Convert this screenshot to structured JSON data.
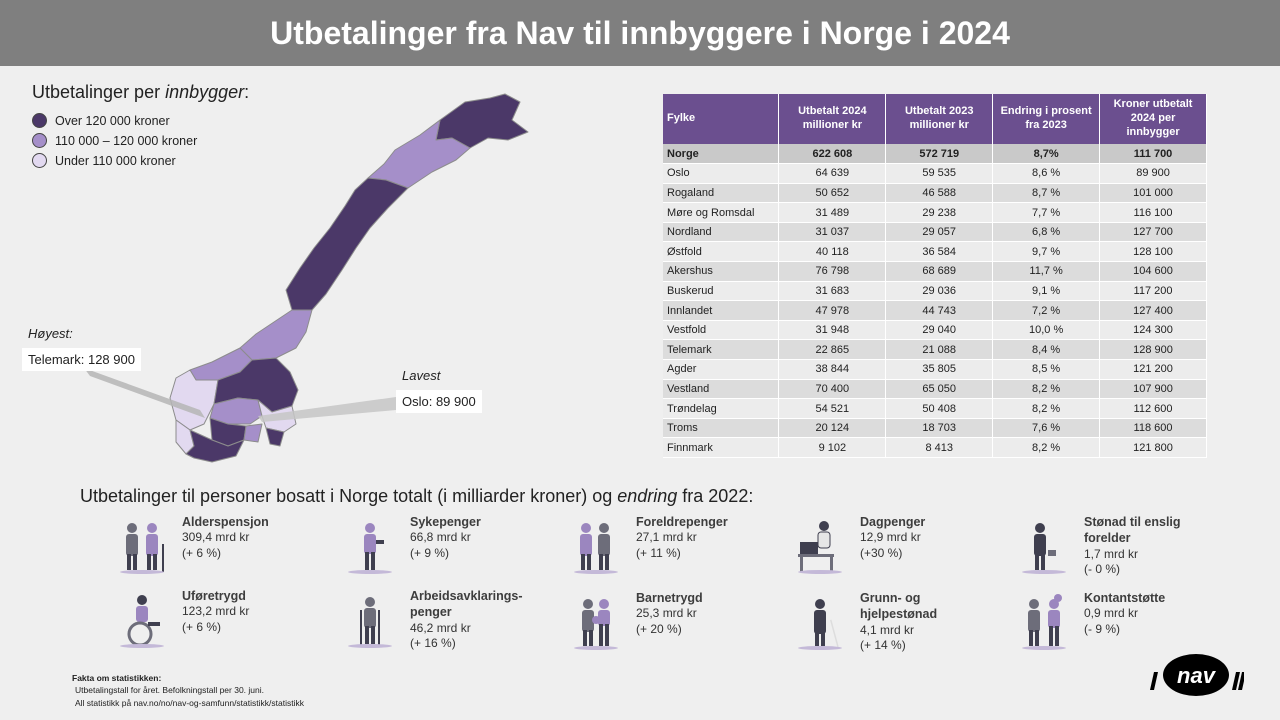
{
  "title": "Utbetalinger fra Nav til innbyggere i Norge i 2024",
  "legend": {
    "title_prefix": "Utbetalinger per ",
    "title_emph": "innbygger",
    "title_suffix": ":",
    "items": [
      {
        "label": "Over 120 000 kroner",
        "color": "#4b3868"
      },
      {
        "label": "110 000 – 120 000 kroner",
        "color": "#a58fc9"
      },
      {
        "label": "Under 110 000 kroner",
        "color": "#e2d9f0"
      }
    ]
  },
  "callouts": {
    "highest_label": "Høyest:",
    "highest_value": "Telemark: 128 900",
    "lowest_label": "Lavest",
    "lowest_value": "Oslo: 89 900"
  },
  "table": {
    "headers": [
      "Fylke",
      "Utbetalt 2024 millioner kr",
      "Utbetalt 2023 millioner kr",
      "Endring i prosent fra 2023",
      "Kroner utbetalt 2024 per innbygger"
    ],
    "total": [
      "Norge",
      "622 608",
      "572 719",
      "8,7%",
      "111 700"
    ],
    "rows": [
      [
        "Oslo",
        "64 639",
        "59 535",
        "8,6 %",
        "89 900"
      ],
      [
        "Rogaland",
        "50 652",
        "46 588",
        "8,7 %",
        "101 000"
      ],
      [
        "Møre og Romsdal",
        "31 489",
        "29 238",
        "7,7 %",
        "116 100"
      ],
      [
        "Nordland",
        "31 037",
        "29 057",
        "6,8 %",
        "127 700"
      ],
      [
        "Østfold",
        "40 118",
        "36 584",
        "9,7 %",
        "128 100"
      ],
      [
        "Akershus",
        "76 798",
        "68 689",
        "11,7 %",
        "104 600"
      ],
      [
        "Buskerud",
        "31 683",
        "29 036",
        "9,1 %",
        "117 200"
      ],
      [
        "Innlandet",
        "47 978",
        "44 743",
        "7,2 %",
        "127 400"
      ],
      [
        "Vestfold",
        "31 948",
        "29 040",
        "10,0 %",
        "124 300"
      ],
      [
        "Telemark",
        "22 865",
        "21 088",
        "8,4 %",
        "128 900"
      ],
      [
        "Agder",
        "38 844",
        "35 805",
        "8,5 %",
        "121 200"
      ],
      [
        "Vestland",
        "70 400",
        "65 050",
        "8,2 %",
        "107 900"
      ],
      [
        "Trøndelag",
        "54 521",
        "50 408",
        "8,2 %",
        "112 600"
      ],
      [
        "Troms",
        "20 124",
        "18 703",
        "7,6 %",
        "118 600"
      ],
      [
        "Finnmark",
        "9 102",
        "8 413",
        "8,2 %",
        "121 800"
      ]
    ]
  },
  "section": {
    "title_prefix": "Utbetalinger til personer bosatt i Norge totalt (i milliarder kroner) og ",
    "title_emph": "endring",
    "title_suffix": " fra 2022:"
  },
  "benefits": [
    {
      "name": "Alderspensjon",
      "amount": "309,4 mrd kr",
      "change": "(+ 6 %)",
      "icon": "elderly-couple-icon"
    },
    {
      "name": "Uføretrygd",
      "amount": "123,2 mrd kr",
      "change": "(+ 6 %)",
      "icon": "wheelchair-user-icon"
    },
    {
      "name": "Sykepenger",
      "amount": "66,8 mrd kr",
      "change": "(+ 9 %)",
      "icon": "sick-person-icon"
    },
    {
      "name": "Arbeidsavklarings-\npenger",
      "amount": "46,2 mrd kr",
      "change": "(+ 16 %)",
      "icon": "crutches-person-icon"
    },
    {
      "name": "Foreldrepenger",
      "amount": "27,1 mrd kr",
      "change": "(+ 11 %)",
      "icon": "parents-icon"
    },
    {
      "name": "Barnetrygd",
      "amount": "25,3 mrd kr",
      "change": "(+ 20 %)",
      "icon": "family-children-icon"
    },
    {
      "name": "Dagpenger",
      "amount": "12,9 mrd kr",
      "change": "(+30 %)",
      "icon": "desk-worker-icon"
    },
    {
      "name": "Grunn- og\nhjelpestønad",
      "amount": "4,1 mrd kr",
      "change": "(+ 14 %)",
      "icon": "blind-person-icon"
    },
    {
      "name": "Stønad til enslig\nforelder",
      "amount": "1,7 mrd kr",
      "change": "(- 0 %)",
      "icon": "single-parent-icon"
    },
    {
      "name": "Kontantstøtte",
      "amount": "0,9 mrd kr",
      "change": "(- 9 %)",
      "icon": "parent-child-play-icon"
    }
  ],
  "facts": {
    "head": "Fakta om statistikken:",
    "line1": "Utbetalingstall for året. Befolkningstall per 30. juni.",
    "line2": "All statistikk på nav.no/no/nav-og-samfunn/statistikk/statistikk"
  },
  "logo": {
    "text": "nav"
  }
}
